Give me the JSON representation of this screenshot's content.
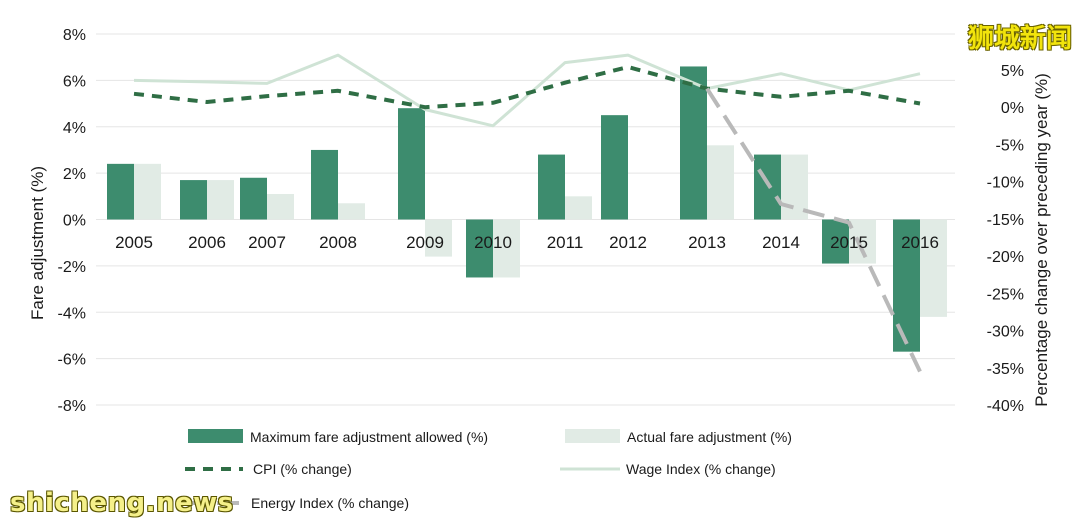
{
  "chart_data": {
    "type": "bar",
    "categories": [
      "2005",
      "2006",
      "2007",
      "2008",
      "2009",
      "2010",
      "2011",
      "2012",
      "2013",
      "2014",
      "2015",
      "2016"
    ],
    "ylabel": "Fare adjustment (%)",
    "y2label": "Percentage change over preceding year (%)",
    "ylim": [
      -8,
      8
    ],
    "y2lim": [
      -40,
      10
    ],
    "yticks": [
      "8%",
      "6%",
      "4%",
      "2%",
      "0%",
      "-2%",
      "-4%",
      "-6%",
      "-8%"
    ],
    "y2ticks": [
      "5%",
      "0%",
      "-5%",
      "-10%",
      "-15%",
      "-20%",
      "-25%",
      "-30%",
      "-35%",
      "-40%"
    ],
    "grid": true,
    "series": [
      {
        "name": "Maximum fare adjustment allowed (%)",
        "kind": "bar",
        "axis": "left",
        "color": "#3d8c6e",
        "values": [
          2.4,
          1.7,
          1.8,
          3.0,
          4.8,
          -2.5,
          2.8,
          4.5,
          6.6,
          2.8,
          -1.9,
          -5.7
        ]
      },
      {
        "name": "Actual fare adjustment (%)",
        "kind": "bar",
        "axis": "left",
        "color": "#e1ebe5",
        "values": [
          2.4,
          1.7,
          1.1,
          0.7,
          -1.6,
          -2.5,
          1.0,
          0.0,
          3.2,
          2.8,
          -1.9,
          -4.2
        ]
      },
      {
        "name": "CPI (% change)",
        "kind": "line",
        "style": "dashed",
        "axis": "right",
        "color": "#2f6e45",
        "values": [
          1.8,
          0.7,
          1.5,
          2.2,
          0.0,
          0.6,
          3.3,
          5.4,
          2.5,
          1.4,
          2.2,
          0.5
        ]
      },
      {
        "name": "Wage Index (% change)",
        "kind": "line",
        "style": "solid",
        "axis": "right",
        "color": "#cfe3d5",
        "values": [
          3.6,
          3.4,
          3.2,
          7.0,
          -0.3,
          -2.5,
          6.0,
          7.0,
          2.5,
          4.5,
          2.3,
          4.5
        ]
      },
      {
        "name": "Energy Index (% change)",
        "kind": "line",
        "style": "dashed",
        "axis": "right",
        "color": "#b9b9b9",
        "values": [
          null,
          null,
          null,
          null,
          null,
          null,
          null,
          null,
          2.5,
          -13.0,
          -15.5,
          -35.5
        ]
      }
    ],
    "legend_position": "bottom"
  },
  "watermarks": {
    "top": "狮城新闻",
    "bottom": "shicheng.news"
  }
}
